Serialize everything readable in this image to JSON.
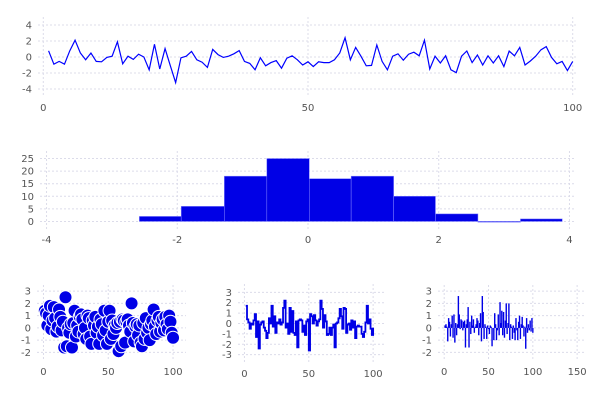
{
  "chart_data": [
    {
      "type": "line",
      "color": "#0000ff",
      "x_start": 1,
      "values": [
        0.77,
        -0.9,
        -0.55,
        -0.9,
        0.77,
        2.1,
        0.5,
        -0.35,
        0.5,
        -0.55,
        -0.6,
        -0.05,
        0.1,
        1.9,
        -0.85,
        0.1,
        -0.3,
        0.35,
        0,
        -1.6,
        1.6,
        -1.5,
        1.05,
        -1.1,
        -3.2,
        -0.1,
        0.1,
        0.7,
        -0.35,
        -0.65,
        -1.3,
        0.95,
        0.3,
        -0.05,
        0.1,
        0.4,
        0.8,
        -0.55,
        -0.8,
        -1.6,
        -0.1,
        -1.1,
        -0.7,
        -0.45,
        -1.4,
        -0.15,
        0.15,
        -0.35,
        -1.0,
        -0.6,
        -1.2,
        -0.6,
        -0.7,
        -0.7,
        -0.35,
        0.5,
        2.4,
        -0.35,
        1.2,
        0.1,
        -1.1,
        -1.05,
        1.5,
        -0.55,
        -1.6,
        0.1,
        0.4,
        -0.4,
        0.35,
        0.6,
        0.15,
        2.1,
        -1.5,
        0.1,
        -0.75,
        0.15,
        -1.6,
        -1.95,
        0.1,
        0.75,
        -0.7,
        0.25,
        -1.0,
        0.15,
        -0.75,
        0.15,
        -1.2,
        0.75,
        0.15,
        1.2,
        -1.0,
        -0.5,
        0.1,
        0.9,
        1.3,
        -0.05,
        -0.85,
        -0.55,
        -1.7,
        -0.55
      ],
      "xlim": [
        -1,
        101
      ],
      "ylim": [
        -5,
        5
      ],
      "xticks": [
        0,
        50,
        100
      ],
      "yticks": [
        4,
        2,
        0,
        -2,
        -4
      ],
      "grid": true
    },
    {
      "type": "bar",
      "subtype": "histogram",
      "color": "#0000e6",
      "bin_edges": [
        -2.58,
        -1.94,
        -1.28,
        -0.63,
        0.02,
        0.66,
        1.31,
        1.95,
        2.6,
        3.25,
        3.89
      ],
      "values": [
        2,
        6,
        18,
        25,
        17,
        18,
        10,
        3,
        0,
        1
      ],
      "xlim": [
        -4.1,
        4.1
      ],
      "ylim": [
        -3,
        28
      ],
      "xticks": [
        -4,
        -2,
        0,
        2,
        4
      ],
      "yticks": [
        25,
        20,
        15,
        10,
        5,
        0
      ],
      "grid": true
    },
    {
      "type": "scatter",
      "color": "#0000e6",
      "x_start": 1,
      "values": [
        1.4,
        1.2,
        0.2,
        1.0,
        1.8,
        -0.1,
        0.6,
        1.7,
        0.8,
        -0.3,
        0.1,
        1.5,
        0.9,
        -0.2,
        0.5,
        -1.6,
        2.5,
        -1.5,
        0.0,
        -0.4,
        0.3,
        -1.6,
        0.4,
        1.4,
        -0.7,
        0.2,
        -0.3,
        0.9,
        1.1,
        0.7,
        -0.5,
        0.0,
        -0.9,
        1.0,
        0.8,
        -0.7,
        -1.3,
        0.6,
        0.2,
        0.9,
        -0.4,
        0.1,
        -1.3,
        0.7,
        0.3,
        -0.6,
        1.4,
        -0.2,
        -1.3,
        0.5,
        1.4,
        -0.9,
        0.6,
        -0.5,
        0.2,
        0.0,
        0.4,
        -1.9,
        0.5,
        -1.5,
        0.7,
        0.6,
        -1.2,
        0.5,
        0.7,
        0.2,
        -0.3,
        2.0,
        0.4,
        -1.1,
        0.1,
        0.3,
        -0.6,
        0.2,
        -1.2,
        -1.5,
        0.4,
        -0.9,
        0.8,
        -0.4,
        0.0,
        -1.0,
        0.3,
        0.6,
        1.5,
        0.1,
        -0.5,
        0.6,
        0.9,
        -0.3,
        0.4,
        0.7,
        -0.2,
        0.9,
        0.3,
        -0.1,
        1.0,
        0.5,
        -0.4,
        -0.8
      ],
      "xlim": [
        -5,
        110
      ],
      "ylim": [
        -2.7,
        3.5
      ],
      "xticks": [
        0,
        50,
        100
      ],
      "yticks": [
        3,
        2,
        1,
        0,
        -1,
        -2
      ],
      "grid": true
    },
    {
      "type": "line",
      "subtype": "step",
      "color": "#0000e6",
      "x_start": 1,
      "values": [
        1.7,
        0.4,
        0.1,
        -0.5,
        0.0,
        -0.1,
        0.3,
        0.9,
        -1.3,
        0.2,
        -2.4,
        -0.1,
        0.1,
        0.2,
        -0.4,
        -0.7,
        -1.4,
        -0.9,
        0.5,
        0.0,
        1.7,
        -0.3,
        0.7,
        -0.9,
        0.1,
        0.0,
        0.4,
        -0.1,
        0.1,
        1.5,
        2.2,
        -0.4,
        0.0,
        -1.0,
        1.5,
        -0.8,
        1.2,
        -0.9,
        -1.1,
        0.2,
        -2.3,
        0.3,
        0.4,
        0.3,
        -0.8,
        -0.2,
        -1.1,
        0.2,
        0.4,
        -2.6,
        0.9,
        0.7,
        0.0,
        0.8,
        0.3,
        -0.2,
        0.2,
        0.4,
        2.2,
        1.4,
        -0.4,
        0.8,
        0.2,
        -1.1,
        -1.0,
        -0.4,
        -1.1,
        -0.4,
        -0.1,
        -2.3,
        0.0,
        0.1,
        0.5,
        1.4,
        0.7,
        -0.5,
        1.5,
        1.4,
        -0.9,
        -0.1,
        0.0,
        -0.6,
        0.3,
        -0.4,
        0.2,
        -1.4,
        -0.3,
        -0.2,
        -0.3,
        -0.3,
        -1.0,
        -1.3,
        -0.8,
        0.1,
        1.7,
        0.0,
        0.4,
        -0.5,
        -1.1,
        -0.4
      ],
      "xlim": [
        -5,
        110
      ],
      "ylim": [
        -3.8,
        3.8
      ],
      "xticks": [
        0,
        50,
        100
      ],
      "yticks": [
        3,
        2,
        1,
        0,
        -1,
        -2,
        -3
      ],
      "grid": true
    },
    {
      "type": "bar",
      "color": "#0000e6",
      "x_start": 1,
      "values": [
        0.2,
        0.3,
        0.1,
        -1.1,
        0.8,
        0.5,
        -0.7,
        0.3,
        1.0,
        -0.8,
        1.1,
        -1.2,
        0.4,
        -0.6,
        0.3,
        2.6,
        1.1,
        -0.1,
        0.7,
        0.6,
        -0.2,
        0.5,
        0.6,
        -1.6,
        0.3,
        0.7,
        1.7,
        -1.6,
        0.5,
        -0.5,
        1.0,
        0.2,
        0.7,
        -0.4,
        0.1,
        0.3,
        0.8,
        0.6,
        -0.6,
        0.4,
        1.2,
        -1.1,
        2.6,
        1.3,
        -0.9,
        0.3,
        0.1,
        -0.9,
        0.2,
        -0.1,
        -0.5,
        0.2,
        0.1,
        -1.5,
        0.0,
        -1.0,
        1.2,
        0.3,
        -1.0,
        -0.2,
        1.1,
        -0.6,
        2.1,
        0.4,
        1.4,
        -0.6,
        1.3,
        -0.8,
        0.6,
        2.0,
        -0.5,
        0.4,
        2.0,
        -1.0,
        0.3,
        0.1,
        -0.9,
        0.2,
        -0.4,
        -1.0,
        0.8,
        -0.2,
        -1.0,
        0.5,
        1.0,
        -0.9,
        0.3,
        0.9,
        0.2,
        -0.7,
        0.1,
        -1.7,
        0.8,
        -0.4,
        0.3,
        -0.2,
        0.6,
        -0.3,
        0.8,
        -0.4
      ],
      "xlim": [
        -7,
        160
      ],
      "ylim": [
        -2.7,
        3.5
      ],
      "xticks": [
        0,
        50,
        100,
        150
      ],
      "yticks": [
        3,
        2,
        1,
        0,
        -1,
        -2
      ],
      "grid": true
    }
  ]
}
